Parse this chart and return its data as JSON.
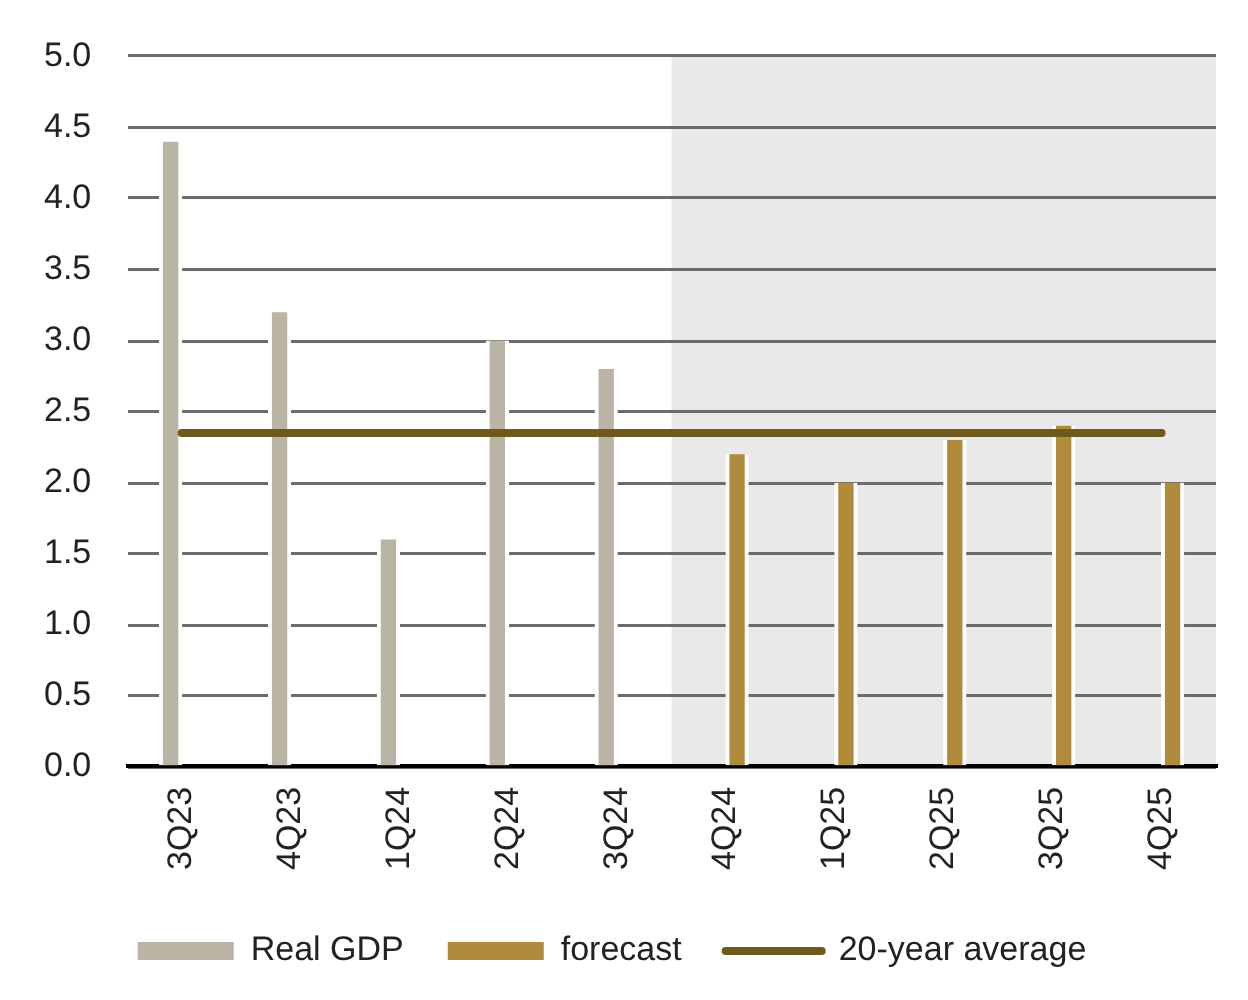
{
  "chart_data": {
    "type": "bar",
    "categories": [
      "3Q23",
      "4Q23",
      "1Q24",
      "2Q24",
      "3Q24",
      "4Q24",
      "1Q25",
      "2Q25",
      "3Q25",
      "4Q25"
    ],
    "series": [
      {
        "name": "Real GDP",
        "color": "#b9b4a3",
        "values": [
          4.4,
          3.2,
          1.6,
          3.0,
          2.8,
          null,
          null,
          null,
          null,
          null
        ]
      },
      {
        "name": "forecast",
        "color": "#b08b3b",
        "values": [
          null,
          null,
          null,
          null,
          null,
          2.2,
          2.0,
          2.3,
          2.4,
          2.0
        ]
      },
      {
        "name": "20-year average",
        "type": "line",
        "color": "#6f5a1e",
        "values": [
          2.35,
          2.35,
          2.35,
          2.35,
          2.35,
          2.35,
          2.35,
          2.35,
          2.35,
          2.35
        ]
      }
    ],
    "ylim": [
      0,
      5
    ],
    "yticks": [
      {
        "value": 0,
        "label": "0.0"
      },
      {
        "value": 0.5,
        "label": "0.5"
      },
      {
        "value": 1,
        "label": "1.0"
      },
      {
        "value": 1.5,
        "label": "1.5"
      },
      {
        "value": 2,
        "label": "2.0"
      },
      {
        "value": 2.5,
        "label": "2.5"
      },
      {
        "value": 3,
        "label": "3.0"
      },
      {
        "value": 3.5,
        "label": "3.5"
      },
      {
        "value": 4,
        "label": "4.0"
      },
      {
        "value": 4.5,
        "label": "4.5"
      },
      {
        "value": 5,
        "label": "5.0"
      }
    ],
    "grid": "y",
    "legend": "bottom",
    "bands": [
      {
        "axis": "x",
        "from": "4Q24",
        "to": "4Q25",
        "color": "#e9e9e9"
      }
    ]
  }
}
